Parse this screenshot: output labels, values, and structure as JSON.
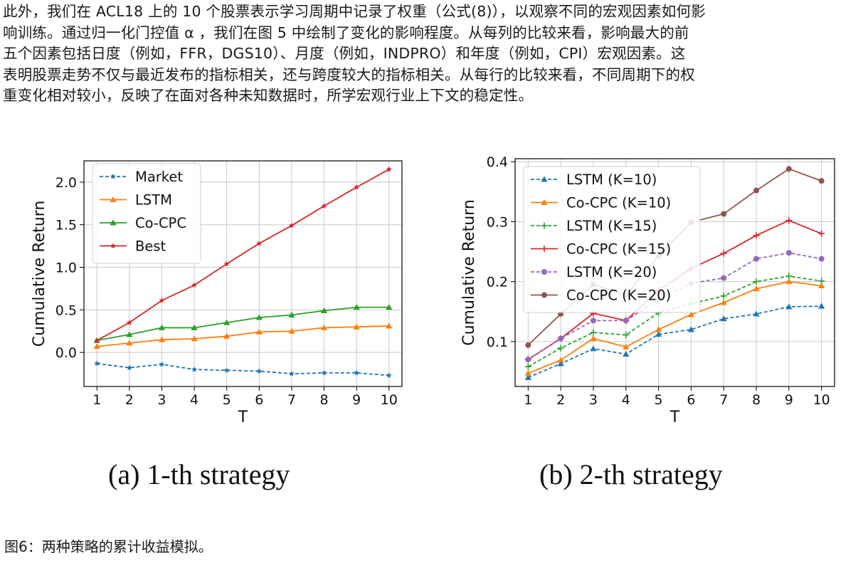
{
  "paragraph": {
    "lines": [
      "此外，我们在 ACL18 上的 10 个股票表示学习周期中记录了权重（公式(8)），以观察不同的宏观因素如何影",
      "响训练。通过归一化门控值 α ，我们在图 5 中绘制了变化的影响程度。从每列的比较来看，影响最大的前",
      "五个因素包括日度（例如，FFR，DGS10）、月度（例如，INDPRO）和年度（例如，CPI）宏观因素。这",
      "表明股票走势不仅与最近发布的指标相关，还与跨度较大的指标相关。从每行的比较来看，不同周期下的权",
      "重变化相对较小，反映了在面对各种未知数据时，所学宏观行业上下文的稳定性。"
    ]
  },
  "figure_caption": "图6：两种策略的累计收益模拟。",
  "chart_data": [
    {
      "type": "line",
      "caption": "(a)  1-th strategy",
      "xlabel": "T",
      "ylabel": "Cumulative Return",
      "x": [
        1,
        2,
        3,
        4,
        5,
        6,
        7,
        8,
        9,
        10
      ],
      "xlim": [
        0.6,
        10.4
      ],
      "ylim": [
        -0.4,
        2.25
      ],
      "yticks": [
        0.0,
        0.5,
        1.0,
        1.5,
        2.0
      ],
      "ytick_labels": [
        "0.0",
        "0.5",
        "1.0",
        "1.5",
        "2.0"
      ],
      "xtick_labels": [
        "1",
        "2",
        "3",
        "4",
        "5",
        "6",
        "7",
        "8",
        "9",
        "10"
      ],
      "grid": true,
      "legend": "top-left",
      "series": [
        {
          "name": "Market",
          "color": "#1f77b4",
          "dash": "dashed",
          "marker": "star",
          "values": [
            -0.13,
            -0.18,
            -0.14,
            -0.2,
            -0.21,
            -0.22,
            -0.25,
            -0.24,
            -0.24,
            -0.27
          ]
        },
        {
          "name": "LSTM",
          "color": "#ff7f0e",
          "dash": "solid",
          "marker": "triangle",
          "values": [
            0.07,
            0.11,
            0.15,
            0.16,
            0.19,
            0.24,
            0.25,
            0.29,
            0.3,
            0.31
          ]
        },
        {
          "name": "Co-CPC",
          "color": "#2ca02c",
          "dash": "solid",
          "marker": "triangle",
          "values": [
            0.14,
            0.21,
            0.29,
            0.29,
            0.35,
            0.41,
            0.44,
            0.49,
            0.53,
            0.53
          ]
        },
        {
          "name": "Best",
          "color": "#d62728",
          "dash": "solid",
          "marker": "star",
          "values": [
            0.14,
            0.35,
            0.61,
            0.79,
            1.04,
            1.28,
            1.49,
            1.72,
            1.94,
            2.15
          ]
        }
      ]
    },
    {
      "type": "line",
      "caption": "(b)  2-th strategy",
      "xlabel": "T",
      "ylabel": "Cumulative Return",
      "x": [
        1,
        2,
        3,
        4,
        5,
        6,
        7,
        8,
        9,
        10
      ],
      "xlim": [
        0.6,
        10.4
      ],
      "ylim": [
        0.025,
        0.405
      ],
      "yticks": [
        0.1,
        0.2,
        0.3,
        0.4
      ],
      "ytick_labels": [
        "0.1",
        "0.2",
        "0.3",
        "0.4"
      ],
      "xtick_labels": [
        "1",
        "2",
        "3",
        "4",
        "5",
        "6",
        "7",
        "8",
        "9",
        "10"
      ],
      "grid": true,
      "legend": "top-left",
      "series": [
        {
          "name": "LSTM (K=10)",
          "color": "#1f77b4",
          "dash": "dashed",
          "marker": "triangle",
          "values": [
            0.04,
            0.063,
            0.088,
            0.079,
            0.112,
            0.12,
            0.138,
            0.146,
            0.158,
            0.159
          ]
        },
        {
          "name": "Co-CPC (K=10)",
          "color": "#ff7f0e",
          "dash": "solid",
          "marker": "triangle",
          "values": [
            0.047,
            0.069,
            0.105,
            0.091,
            0.12,
            0.145,
            0.165,
            0.188,
            0.2,
            0.193
          ]
        },
        {
          "name": "LSTM (K=15)",
          "color": "#2ca02c",
          "dash": "dashed",
          "marker": "plus",
          "values": [
            0.058,
            0.089,
            0.115,
            0.111,
            0.148,
            0.163,
            0.176,
            0.2,
            0.209,
            0.201
          ]
        },
        {
          "name": "Co-CPC (K=15)",
          "color": "#d62728",
          "dash": "solid",
          "marker": "plus",
          "values": [
            0.07,
            0.105,
            0.147,
            0.135,
            0.185,
            0.222,
            0.247,
            0.277,
            0.302,
            0.28
          ]
        },
        {
          "name": "LSTM (K=20)",
          "color": "#9467bd",
          "dash": "dashed",
          "marker": "circle",
          "values": [
            0.07,
            0.105,
            0.135,
            0.135,
            0.17,
            0.197,
            0.206,
            0.238,
            0.248,
            0.238
          ]
        },
        {
          "name": "Co-CPC (K=20)",
          "color": "#8c564b",
          "dash": "solid",
          "marker": "circle",
          "values": [
            0.094,
            0.146,
            0.195,
            0.178,
            0.243,
            0.299,
            0.313,
            0.352,
            0.388,
            0.368
          ]
        }
      ]
    }
  ]
}
